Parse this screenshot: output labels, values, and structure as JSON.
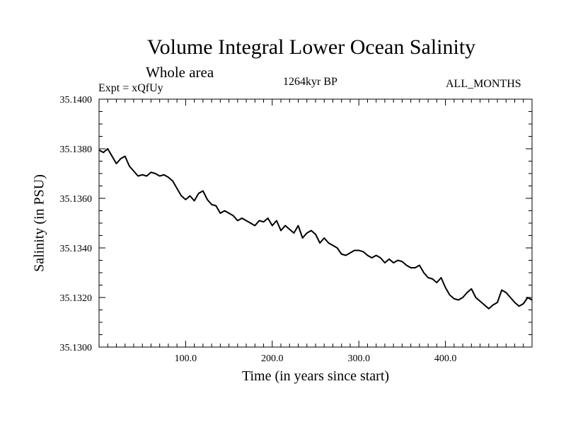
{
  "chart_data": {
    "type": "line",
    "title": "Volume Integral Lower Ocean Salinity",
    "subtitle": "Whole area",
    "experiment_label": "Expt = xQfUy",
    "period_label": "1264kyr BP",
    "months_label": "ALL_MONTHS",
    "xlabel": "Time (in years since start)",
    "ylabel": "Salinity (in PSU)",
    "xlim": [
      0,
      500
    ],
    "ylim": [
      35.13,
      35.14
    ],
    "xticks": [
      100,
      200,
      300,
      400
    ],
    "xtick_labels": [
      "100.0",
      "200.0",
      "300.0",
      "400.0"
    ],
    "yticks": [
      35.13,
      35.132,
      35.134,
      35.136,
      35.138,
      35.14
    ],
    "ytick_labels": [
      "35.1300",
      "35.1320",
      "35.1340",
      "35.1360",
      "35.1380",
      "35.1400"
    ],
    "series": [
      {
        "name": "Lower ocean salinity",
        "color": "#000000",
        "x": [
          0,
          5,
          10,
          15,
          20,
          25,
          30,
          35,
          40,
          45,
          50,
          55,
          60,
          65,
          70,
          75,
          80,
          85,
          90,
          95,
          100,
          105,
          110,
          115,
          120,
          125,
          130,
          135,
          140,
          145,
          150,
          155,
          160,
          165,
          170,
          175,
          180,
          185,
          190,
          195,
          200,
          205,
          210,
          215,
          220,
          225,
          230,
          235,
          240,
          245,
          250,
          255,
          260,
          265,
          270,
          275,
          280,
          285,
          290,
          295,
          300,
          305,
          310,
          315,
          320,
          325,
          330,
          335,
          340,
          345,
          350,
          355,
          360,
          365,
          370,
          375,
          380,
          385,
          390,
          395,
          400,
          405,
          410,
          415,
          420,
          425,
          430,
          435,
          440,
          445,
          450,
          455,
          460,
          465,
          470,
          475,
          480,
          485,
          490,
          495,
          500
        ],
        "values": [
          35.13795,
          35.13785,
          35.138,
          35.1377,
          35.1374,
          35.1376,
          35.1377,
          35.1373,
          35.1371,
          35.1369,
          35.13695,
          35.1369,
          35.13705,
          35.137,
          35.1369,
          35.13695,
          35.13685,
          35.1367,
          35.1364,
          35.1361,
          35.13595,
          35.1361,
          35.1359,
          35.1362,
          35.1363,
          35.13595,
          35.13575,
          35.1357,
          35.1354,
          35.1355,
          35.1354,
          35.1353,
          35.1351,
          35.1352,
          35.1351,
          35.135,
          35.1349,
          35.1351,
          35.13505,
          35.1352,
          35.1349,
          35.1351,
          35.1347,
          35.1349,
          35.13475,
          35.1346,
          35.1349,
          35.1344,
          35.1346,
          35.1347,
          35.13455,
          35.1342,
          35.1344,
          35.1342,
          35.1341,
          35.134,
          35.13375,
          35.1337,
          35.1338,
          35.1339,
          35.1339,
          35.13385,
          35.1337,
          35.1336,
          35.1337,
          35.1336,
          35.1334,
          35.13355,
          35.1334,
          35.1335,
          35.13345,
          35.1333,
          35.1332,
          35.1332,
          35.1333,
          35.133,
          35.1328,
          35.13275,
          35.1326,
          35.1328,
          35.1324,
          35.1321,
          35.13195,
          35.1319,
          35.132,
          35.1322,
          35.13235,
          35.132,
          35.13185,
          35.1317,
          35.13155,
          35.1317,
          35.1318,
          35.1323,
          35.1322,
          35.132,
          35.1318,
          35.13165,
          35.13175,
          35.132,
          35.1319
        ]
      }
    ]
  }
}
